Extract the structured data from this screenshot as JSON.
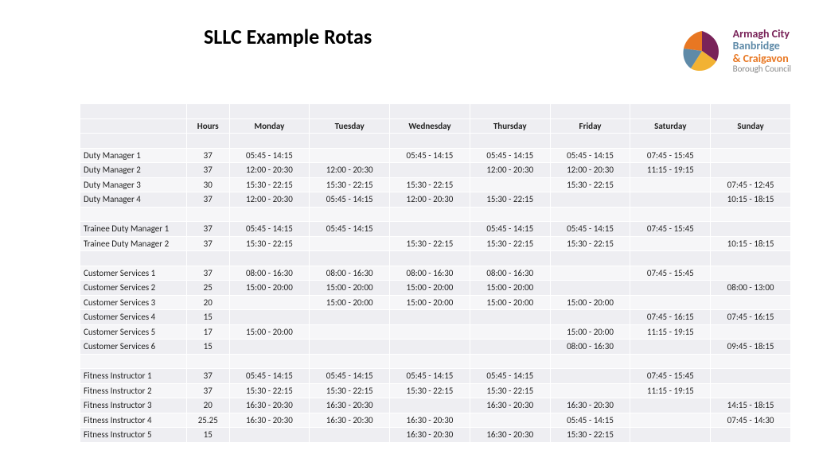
{
  "title": "SLLC Example Rotas",
  "logo": {
    "line1": "Armagh City",
    "line2": "Banbridge",
    "line3": "& Craigavon",
    "line4": "Borough Council",
    "color_purple": "#792359",
    "color_orange": "#e87722",
    "color_teal": "#5e8aa8",
    "color_yellow": "#f2b233"
  },
  "columns": [
    "",
    "Hours",
    "Monday",
    "Tuesday",
    "Wednesday",
    "Thursday",
    "Friday",
    "Saturday",
    "Sunday"
  ],
  "rows": [
    {
      "blank": true
    },
    {
      "role": "Duty Manager 1",
      "hours": "37",
      "days": [
        "05:45 - 14:15",
        "",
        "05:45 - 14:15",
        "05:45 - 14:15",
        "05:45 - 14:15",
        "07:45 - 15:45",
        ""
      ]
    },
    {
      "role": "Duty Manager 2",
      "hours": "37",
      "days": [
        "12:00 - 20:30",
        "12:00 - 20:30",
        "",
        "12:00 - 20:30",
        "12:00 - 20:30",
        "11:15 - 19:15",
        ""
      ]
    },
    {
      "role": "Duty Manager 3",
      "hours": "30",
      "days": [
        "15:30 - 22:15",
        "15:30 - 22:15",
        "15:30 - 22:15",
        "",
        "15:30 - 22:15",
        "",
        "07:45 - 12:45"
      ]
    },
    {
      "role": "Duty Manager 4",
      "hours": "37",
      "days": [
        "12:00 - 20:30",
        "05:45 - 14:15",
        "12:00 - 20:30",
        "15:30 - 22:15",
        "",
        "",
        "10:15 - 18:15"
      ]
    },
    {
      "blank": true
    },
    {
      "role": "Trainee Duty Manager 1",
      "hours": "37",
      "days": [
        "05:45 - 14:15",
        "05:45 - 14:15",
        "",
        "05:45 - 14:15",
        "05:45 - 14:15",
        "07:45 - 15:45",
        ""
      ]
    },
    {
      "role": "Trainee Duty Manager 2",
      "hours": "37",
      "days": [
        "15:30 - 22:15",
        "",
        "15:30 - 22:15",
        "15:30 - 22:15",
        "15:30 - 22:15",
        "",
        "10:15 - 18:15"
      ]
    },
    {
      "blank": true
    },
    {
      "role": "Customer Services 1",
      "hours": "37",
      "days": [
        "08:00 - 16:30",
        "08:00 - 16:30",
        "08:00 - 16:30",
        "08:00 - 16:30",
        "",
        "07:45 - 15:45",
        ""
      ]
    },
    {
      "role": "Customer Services 2",
      "hours": "25",
      "days": [
        "15:00 - 20:00",
        "15:00 - 20:00",
        "15:00 - 20:00",
        "15:00 - 20:00",
        "",
        "",
        "08:00 - 13:00"
      ]
    },
    {
      "role": "Customer Services 3",
      "hours": "20",
      "days": [
        "",
        "15:00 - 20:00",
        "15:00 - 20:00",
        "15:00 - 20:00",
        "15:00 - 20:00",
        "",
        ""
      ]
    },
    {
      "role": "Customer Services 4",
      "hours": "15",
      "days": [
        "",
        "",
        "",
        "",
        "",
        "07:45 - 16:15",
        "07:45 - 16:15"
      ]
    },
    {
      "role": "Customer Services 5",
      "hours": "17",
      "days": [
        "15:00 - 20:00",
        "",
        "",
        "",
        "15:00 - 20:00",
        "11:15 - 19:15",
        ""
      ]
    },
    {
      "role": "Customer Services 6",
      "hours": "15",
      "days": [
        "",
        "",
        "",
        "",
        "08:00 - 16:30",
        "",
        "09:45 - 18:15"
      ]
    },
    {
      "blank": true
    },
    {
      "role": "Fitness Instructor 1",
      "hours": "37",
      "days": [
        "05:45 - 14:15",
        "05:45 - 14:15",
        "05:45 - 14:15",
        "05:45 - 14:15",
        "",
        "07:45 - 15:45",
        ""
      ]
    },
    {
      "role": "Fitness Instructor 2",
      "hours": "37",
      "days": [
        "15:30 - 22:15",
        "15:30 - 22:15",
        "15:30 - 22:15",
        "15:30 - 22:15",
        "",
        "11:15 - 19:15",
        ""
      ]
    },
    {
      "role": "Fitness Instructor 3",
      "hours": "20",
      "days": [
        "16:30 - 20:30",
        "16:30 - 20:30",
        "",
        "16:30 - 20:30",
        "16:30 - 20:30",
        "",
        "14:15 - 18:15"
      ]
    },
    {
      "role": "Fitness Instructor 4",
      "hours": "25.25",
      "days": [
        "16:30 - 20:30",
        "16:30 - 20:30",
        "16:30 - 20:30",
        "",
        "05:45 - 14:15",
        "",
        "07:45 - 14:30"
      ]
    },
    {
      "role": "Fitness Instructor 5",
      "hours": "15",
      "days": [
        "",
        "",
        "16:30 - 20:30",
        "16:30 - 20:30",
        "15:30 - 22:15",
        "",
        ""
      ]
    }
  ],
  "style": {
    "row_bg_odd": "#eeeef2",
    "row_bg_even": "#f6f6f8",
    "font_size_pt": 11,
    "title_font_size_pt": 26
  }
}
